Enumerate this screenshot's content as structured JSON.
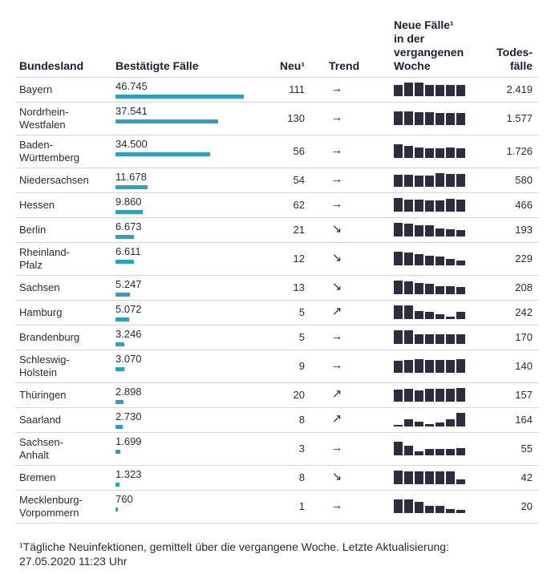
{
  "headers": {
    "bundesland": "Bundesland",
    "bestaetigt": "Bestätigte Fälle",
    "neu": "Neu¹",
    "trend": "Trend",
    "woche_lines": [
      "Neue Fälle¹",
      "in der",
      "vergangenen",
      "Woche"
    ],
    "todes_lines": [
      "Todes-",
      "fälle"
    ]
  },
  "footnote": "¹Tägliche Neuinfektionen, gemittelt über die vergangene Woche. Letzte Aktualisierung: 27.05.2020 11:23 Uhr",
  "colors": {
    "bar": "#2f9ec0",
    "spark": "#2d2d3f",
    "rule": "#d4d4d8"
  },
  "chart_data": {
    "type": "table",
    "max_confirmed": 46745,
    "rows": [
      {
        "state_lines": [
          "Bayern"
        ],
        "confirmed": "46.745",
        "confirmed_value": 46745,
        "neu": "111",
        "trend": "→",
        "trend_icon": "arrow-right-icon",
        "week": [
          0.85,
          1,
          1,
          0.85,
          0.85,
          0.85,
          0.85
        ],
        "deaths": "2.419"
      },
      {
        "state_lines": [
          "Nordrhein-",
          "Westfalen"
        ],
        "confirmed": "37.541",
        "confirmed_value": 37541,
        "neu": "130",
        "trend": "→",
        "trend_icon": "arrow-right-icon",
        "week": [
          1,
          1,
          0.95,
          0.95,
          0.9,
          0.9,
          0.9
        ],
        "deaths": "1.577"
      },
      {
        "state_lines": [
          "Baden-",
          "Württemberg"
        ],
        "confirmed": "34.500",
        "confirmed_value": 34500,
        "neu": "56",
        "trend": "→",
        "trend_icon": "arrow-right-icon",
        "week": [
          1,
          0.9,
          0.75,
          0.7,
          0.7,
          0.75,
          0.7
        ],
        "deaths": "1.726"
      },
      {
        "state_lines": [
          "Niedersachsen"
        ],
        "confirmed": "11.678",
        "confirmed_value": 11678,
        "neu": "54",
        "trend": "→",
        "trend_icon": "arrow-right-icon",
        "week": [
          0.9,
          0.9,
          0.85,
          0.85,
          1,
          0.95,
          0.95
        ],
        "deaths": "580"
      },
      {
        "state_lines": [
          "Hessen"
        ],
        "confirmed": "9.860",
        "confirmed_value": 9860,
        "neu": "62",
        "trend": "→",
        "trend_icon": "arrow-right-icon",
        "week": [
          1,
          0.9,
          0.9,
          0.85,
          0.85,
          0.95,
          0.9
        ],
        "deaths": "466"
      },
      {
        "state_lines": [
          "Berlin"
        ],
        "confirmed": "6.673",
        "confirmed_value": 6673,
        "neu": "21",
        "trend": "↘",
        "trend_icon": "arrow-down-right-icon",
        "week": [
          1,
          0.95,
          0.8,
          0.8,
          0.6,
          0.55,
          0.45
        ],
        "deaths": "193"
      },
      {
        "state_lines": [
          "Rheinland-",
          "Pfalz"
        ],
        "confirmed": "6.611",
        "confirmed_value": 6611,
        "neu": "12",
        "trend": "↘",
        "trend_icon": "arrow-down-right-icon",
        "week": [
          1,
          0.95,
          0.85,
          0.7,
          0.65,
          0.45,
          0.35
        ],
        "deaths": "229"
      },
      {
        "state_lines": [
          "Sachsen"
        ],
        "confirmed": "5.247",
        "confirmed_value": 5247,
        "neu": "13",
        "trend": "↘",
        "trend_icon": "arrow-down-right-icon",
        "week": [
          1,
          0.95,
          0.85,
          0.75,
          0.6,
          0.6,
          0.55
        ],
        "deaths": "208"
      },
      {
        "state_lines": [
          "Hamburg"
        ],
        "confirmed": "5.072",
        "confirmed_value": 5072,
        "neu": "5",
        "trend": "↗",
        "trend_icon": "arrow-up-right-icon",
        "week": [
          1,
          1,
          0.6,
          0.5,
          0.35,
          0.2,
          0.5
        ],
        "deaths": "242"
      },
      {
        "state_lines": [
          "Brandenburg"
        ],
        "confirmed": "3.246",
        "confirmed_value": 3246,
        "neu": "5",
        "trend": "→",
        "trend_icon": "arrow-right-icon",
        "week": [
          1,
          1,
          0.7,
          0.7,
          0.7,
          0.7,
          0.7
        ],
        "deaths": "170"
      },
      {
        "state_lines": [
          "Schleswig-",
          "Holstein"
        ],
        "confirmed": "3.070",
        "confirmed_value": 3070,
        "neu": "9",
        "trend": "→",
        "trend_icon": "arrow-right-icon",
        "week": [
          0.9,
          0.95,
          1,
          0.95,
          0.95,
          0.95,
          1
        ],
        "deaths": "140"
      },
      {
        "state_lines": [
          "Thüringen"
        ],
        "confirmed": "2.898",
        "confirmed_value": 2898,
        "neu": "20",
        "trend": "↗",
        "trend_icon": "arrow-up-right-icon",
        "week": [
          0.9,
          0.95,
          0.85,
          0.95,
          0.95,
          0.95,
          1
        ],
        "deaths": "157"
      },
      {
        "state_lines": [
          "Saarland"
        ],
        "confirmed": "2.730",
        "confirmed_value": 2730,
        "neu": "8",
        "trend": "↗",
        "trend_icon": "arrow-up-right-icon",
        "week": [
          0.1,
          0.5,
          0.35,
          0.2,
          0.3,
          0.5,
          1
        ],
        "deaths": "164"
      },
      {
        "state_lines": [
          "Sachsen-",
          "Anhalt"
        ],
        "confirmed": "1.699",
        "confirmed_value": 1699,
        "neu": "3",
        "trend": "→",
        "trend_icon": "arrow-right-icon",
        "week": [
          1,
          0.7,
          0.3,
          0.45,
          0.45,
          0.45,
          0.5
        ],
        "deaths": "55"
      },
      {
        "state_lines": [
          "Bremen"
        ],
        "confirmed": "1.323",
        "confirmed_value": 1323,
        "neu": "8",
        "trend": "↘",
        "trend_icon": "arrow-down-right-icon",
        "week": [
          1,
          0.95,
          0.95,
          0.95,
          0.95,
          0.95,
          0.35
        ],
        "deaths": "42"
      },
      {
        "state_lines": [
          "Mecklenburg-",
          "Vorpommern"
        ],
        "confirmed": "760",
        "confirmed_value": 760,
        "neu": "1",
        "trend": "→",
        "trend_icon": "arrow-right-icon",
        "week": [
          1,
          1,
          0.8,
          0.55,
          0.5,
          0.3,
          0.25
        ],
        "deaths": "20"
      }
    ]
  }
}
